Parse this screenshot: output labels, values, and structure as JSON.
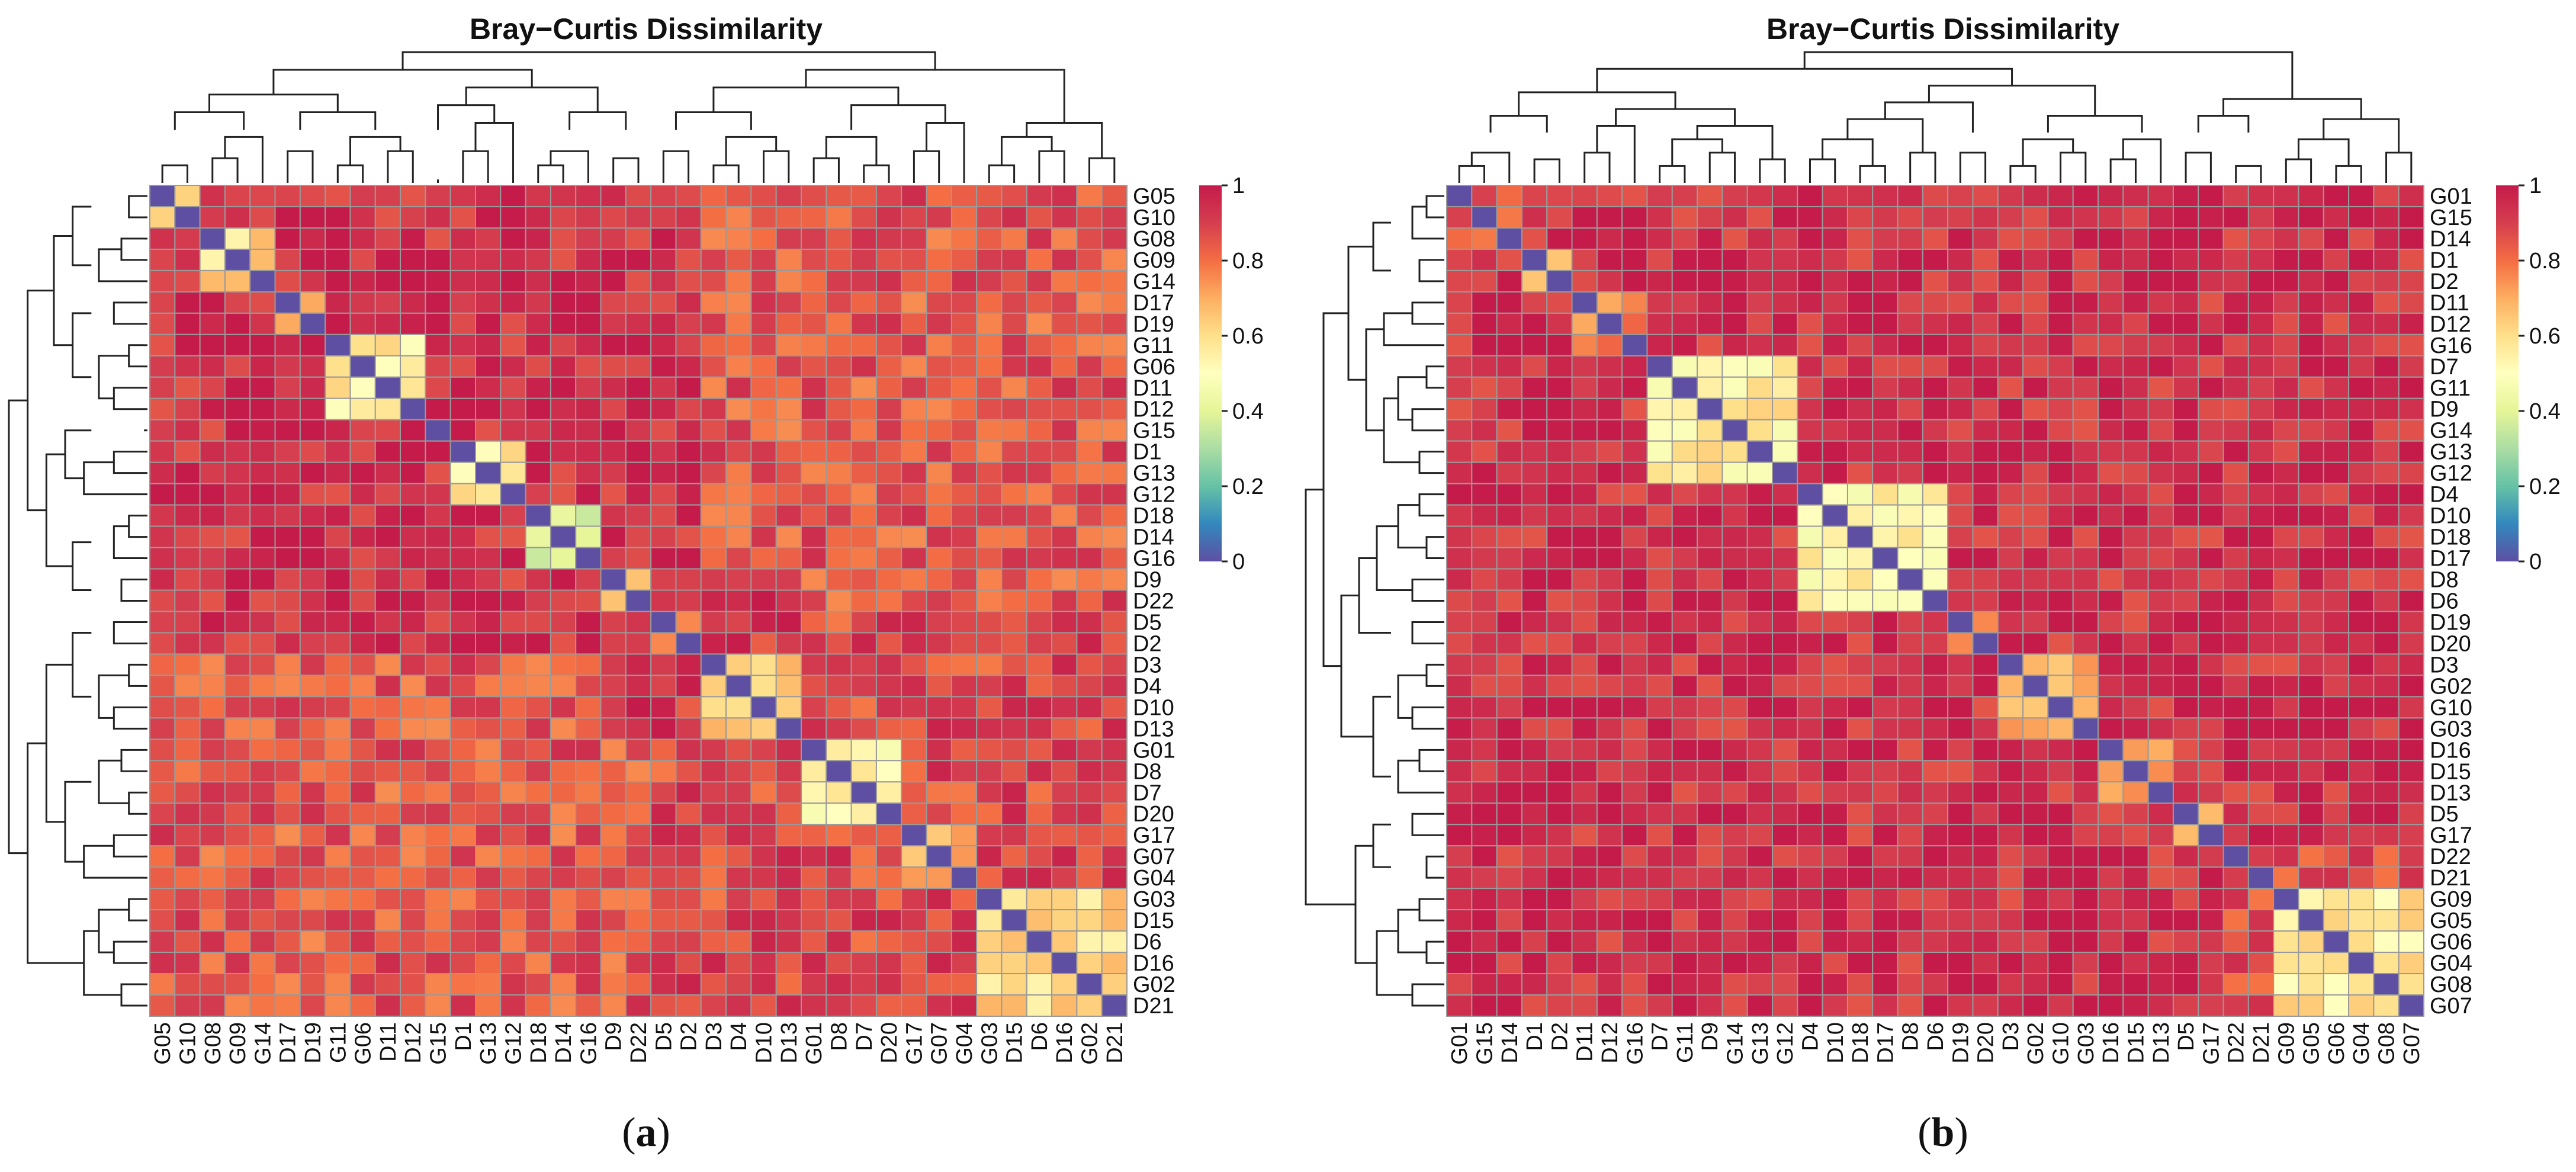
{
  "colorbar": {
    "ticks": [
      "0",
      "0.2",
      "0.4",
      "0.6",
      "0.8",
      "1"
    ],
    "tick_values": [
      0,
      0.2,
      0.4,
      0.6,
      0.8,
      1
    ],
    "stops": [
      "#5E4FA2",
      "#3288BD",
      "#66C2A5",
      "#ABDDA4",
      "#E6F598",
      "#FFFFBF",
      "#FEE08B",
      "#FDAE61",
      "#F46D43",
      "#D53E4F",
      "#C51B4B"
    ]
  },
  "chart_data": [
    {
      "type": "heatmap",
      "title": "Bray−Curtis Dissimilarity",
      "panel_label": {
        "open": "(",
        "letter": "a",
        "close": ")"
      },
      "value_range": [
        0,
        1
      ],
      "labels": [
        "G05",
        "G10",
        "G08",
        "G09",
        "G14",
        "D17",
        "D19",
        "G11",
        "G06",
        "D11",
        "D12",
        "G15",
        "D1",
        "G13",
        "G12",
        "D18",
        "D14",
        "G16",
        "D9",
        "D22",
        "D5",
        "D2",
        "D3",
        "D4",
        "D10",
        "D13",
        "G01",
        "D8",
        "D7",
        "D20",
        "G17",
        "G07",
        "G04",
        "G03",
        "D15",
        "D6",
        "D16",
        "G02",
        "D21"
      ],
      "clusters": [
        [
          0,
          1
        ],
        [
          2,
          3,
          4
        ],
        [
          5,
          6
        ],
        [
          7,
          8,
          9,
          10
        ],
        [
          11
        ],
        [
          12,
          13,
          14
        ],
        [
          15,
          16,
          17
        ],
        [
          18,
          19
        ],
        [
          20,
          21
        ],
        [
          22,
          23,
          24,
          25
        ],
        [
          26,
          27,
          28,
          29
        ],
        [
          30,
          31,
          32
        ],
        [
          33,
          34,
          35,
          36,
          37,
          38
        ]
      ],
      "within_values": [
        0.55,
        0.62,
        0.75,
        0.58,
        0.8,
        0.58,
        0.42,
        0.72,
        0.75,
        0.6,
        0.55,
        0.68,
        0.62
      ],
      "cross_levels": [
        [
          0,
          1,
          0.93
        ],
        [
          2,
          4,
          0.95
        ],
        [
          5,
          7,
          0.92
        ],
        [
          7,
          9,
          0.93
        ],
        [
          9,
          12,
          0.82
        ],
        [
          0,
          8,
          0.95
        ],
        [
          8,
          12,
          0.88
        ],
        [
          0,
          12,
          0.85
        ]
      ],
      "dendrogram_order": [
        0,
        1,
        2,
        3,
        4,
        5,
        6,
        7,
        8,
        9,
        10,
        11,
        12
      ]
    },
    {
      "type": "heatmap",
      "title": "Bray−Curtis Dissimilarity",
      "panel_label": {
        "open": "(",
        "letter": "b",
        "close": ")"
      },
      "value_range": [
        0,
        1
      ],
      "labels": [
        "G01",
        "G15",
        "D14",
        "D1",
        "D2",
        "D11",
        "D12",
        "G16",
        "D7",
        "G11",
        "D9",
        "G14",
        "G13",
        "G12",
        "D4",
        "D10",
        "D18",
        "D17",
        "D8",
        "D6",
        "D19",
        "D20",
        "D3",
        "G02",
        "G10",
        "G03",
        "D16",
        "D15",
        "D13",
        "D5",
        "G17",
        "D22",
        "D21",
        "G09",
        "G05",
        "G06",
        "G04",
        "G08",
        "G07"
      ],
      "clusters": [
        [
          0,
          1,
          2
        ],
        [
          3,
          4
        ],
        [
          5,
          6,
          7
        ],
        [
          8,
          9,
          10,
          11,
          12,
          13
        ],
        [
          14,
          15,
          16,
          17,
          18,
          19
        ],
        [
          20,
          21
        ],
        [
          22,
          23,
          24,
          25
        ],
        [
          26,
          27,
          28
        ],
        [
          29,
          30
        ],
        [
          31,
          32
        ],
        [
          33,
          34,
          35,
          36,
          37,
          38
        ]
      ],
      "within_values": [
        0.82,
        0.6,
        0.75,
        0.55,
        0.55,
        0.75,
        0.65,
        0.72,
        0.72,
        0.85,
        0.58
      ],
      "cross_levels": [
        [
          0,
          1,
          0.95
        ],
        [
          1,
          2,
          0.85
        ],
        [
          2,
          3,
          0.8
        ],
        [
          4,
          5,
          0.82
        ],
        [
          5,
          6,
          0.78
        ],
        [
          6,
          7,
          0.8
        ],
        [
          7,
          8,
          0.8
        ],
        [
          0,
          4,
          0.92
        ],
        [
          9,
          10,
          0.85
        ],
        [
          4,
          9,
          0.88
        ],
        [
          0,
          9,
          0.95
        ]
      ],
      "dendrogram_order": [
        0,
        1,
        2,
        3,
        4,
        5,
        6,
        7,
        8,
        9,
        10
      ]
    }
  ]
}
